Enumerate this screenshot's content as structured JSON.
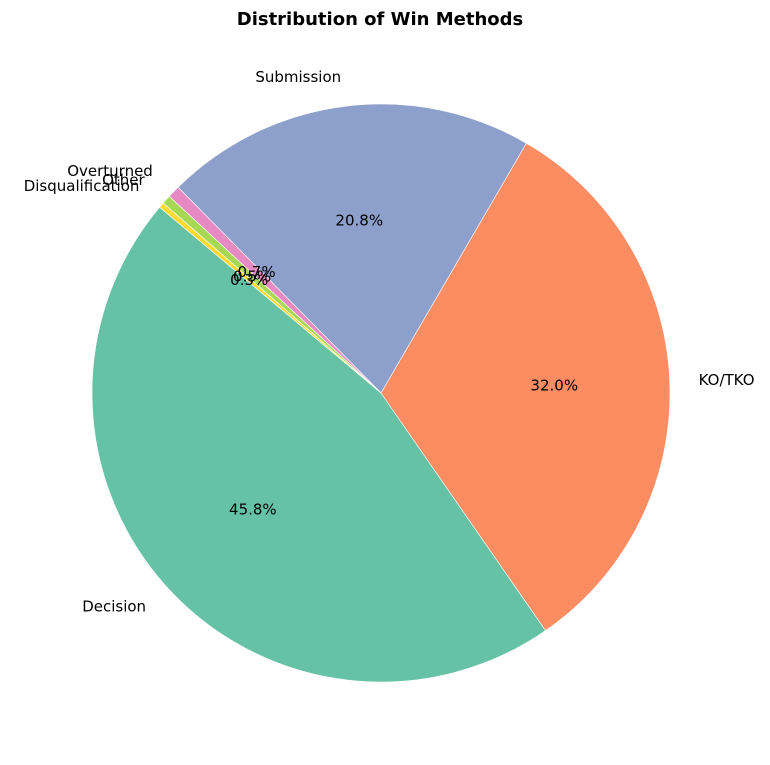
{
  "chart_data": {
    "type": "pie",
    "title": "Distribution of Win Methods",
    "start_angle_deg": 140,
    "direction": "counterclockwise",
    "slices": [
      {
        "label": "Decision",
        "value": 45.8,
        "pct_label": "45.8%",
        "color": "#66c2a5"
      },
      {
        "label": "KO/TKO",
        "value": 32.0,
        "pct_label": "32.0%",
        "color": "#fc8d62"
      },
      {
        "label": "Submission",
        "value": 20.8,
        "pct_label": "20.8%",
        "color": "#8da0cb"
      },
      {
        "label": "Overturned",
        "value": 0.7,
        "pct_label": "0.7%",
        "color": "#e78ac3"
      },
      {
        "label": "Other",
        "value": 0.5,
        "pct_label": "0.5%",
        "color": "#a6d854"
      },
      {
        "label": "Disqualification",
        "value": 0.3,
        "pct_label": "0.3%",
        "color": "#ffd92f"
      }
    ]
  }
}
